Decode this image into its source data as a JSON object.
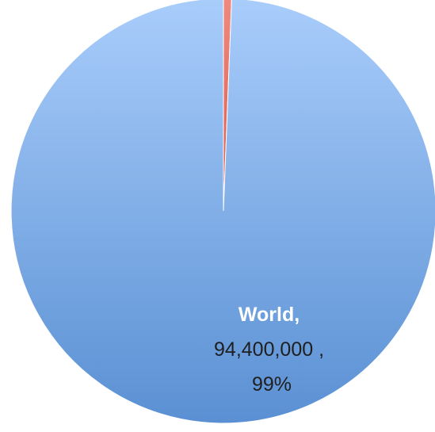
{
  "chart_data": {
    "type": "pie",
    "slices": [
      {
        "name": "World",
        "value": 94400000,
        "percent": "99%",
        "label_name": "World,",
        "label_value": "94,400,000 ,",
        "label_percent": "99%",
        "color_light": "#a9cdfb",
        "color_dark": "#5a90d3",
        "label_color_name": "#ffffff",
        "label_color_text": "#1f1f1f"
      },
      {
        "value": 588000,
        "percent": "1%",
        "color_light": "#ee8a7f",
        "color_dark": "#d9584b",
        "labeled": false
      }
    ],
    "start_angle_deg": 0,
    "legend": "none",
    "title": ""
  }
}
